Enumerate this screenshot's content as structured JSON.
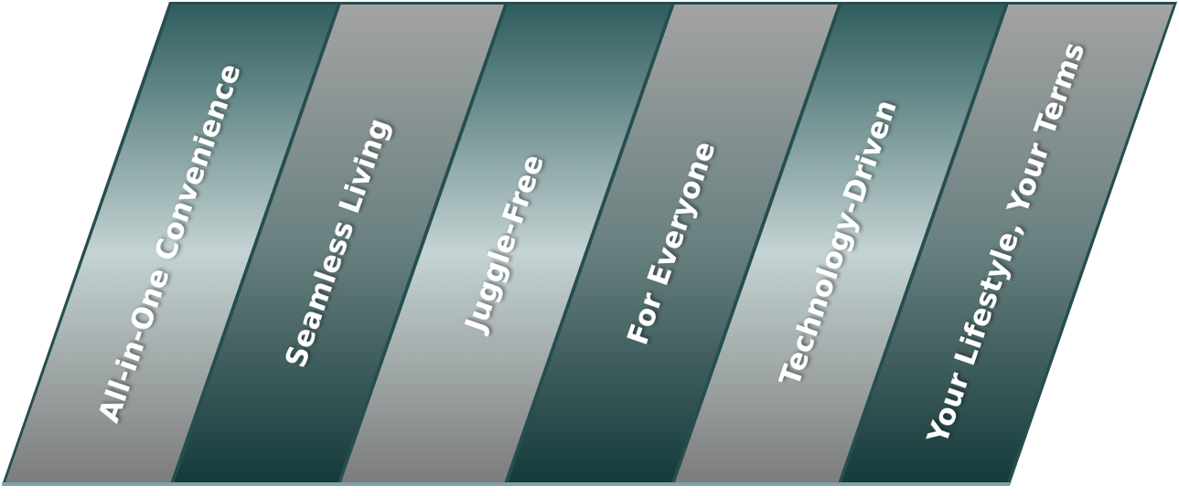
{
  "bands": [
    {
      "label": "All-in-One Convenience",
      "style": "teal"
    },
    {
      "label": "Seamless Living",
      "style": "gray"
    },
    {
      "label": "Juggle-Free",
      "style": "teal"
    },
    {
      "label": "For Everyone",
      "style": "gray"
    },
    {
      "label": "Technology-Driven",
      "style": "teal"
    },
    {
      "label": "Your Lifestyle, Your Terms",
      "style": "gray"
    }
  ],
  "colors": {
    "frame": "#254e4f",
    "frame_bottom": "#7fa3a3",
    "teal_top": "#2f5d5e",
    "teal_mid": "#c4d3d3",
    "teal_bottom": "#7c7c7c",
    "gray_top": "#a3a3a3",
    "gray_mid": "#6a8181",
    "gray_bottom": "#153a3a",
    "separator": "#1d3f40"
  }
}
